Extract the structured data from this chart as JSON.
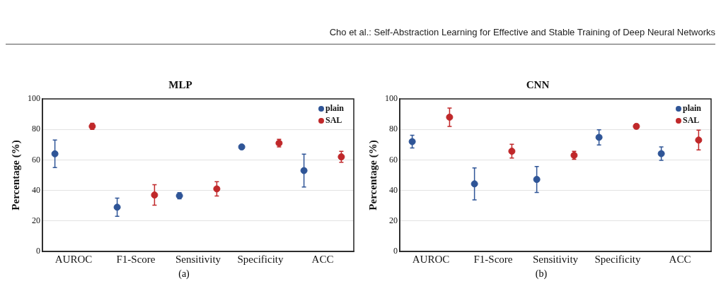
{
  "chart_data": [
    {
      "type": "scatter",
      "title": "MLP",
      "ylabel": "Percentage (%)",
      "categories": [
        "AUROC",
        "F1-Score",
        "Sensitivity",
        "Specificity",
        "ACC"
      ],
      "series": [
        {
          "name": "plain",
          "color": "#2f5597",
          "values": [
            64,
            29,
            36.5,
            68.5,
            53
          ],
          "errors": [
            9,
            6,
            2,
            null,
            10.8
          ]
        },
        {
          "name": "SAL",
          "color": "#c0282a",
          "values": [
            82,
            37,
            41,
            71,
            62
          ],
          "errors": [
            2,
            6.7,
            4.7,
            2.5,
            3.6
          ]
        }
      ],
      "ylim": [
        0,
        100
      ],
      "yticks": [
        0,
        20,
        40,
        60,
        80,
        100
      ],
      "grid": "y",
      "legend": "top right",
      "marker": "circle",
      "annotations": [
        "Cho et al.: Self-Abstraction Learning for Effective and Stable Training of Deep Neural Networks",
        "(a)"
      ]
    },
    {
      "type": "scatter",
      "title": "CNN",
      "ylabel": "Percentage (%)",
      "categories": [
        "AUROC",
        "F1-Score",
        "Sensitivity",
        "Specificity",
        "ACC"
      ],
      "series": [
        {
          "name": "plain",
          "color": "#2f5597",
          "values": [
            72,
            44.3,
            47.2,
            74.8,
            64.1
          ],
          "errors": [
            4.2,
            10.5,
            8.5,
            5,
            4.4
          ]
        },
        {
          "name": "SAL",
          "color": "#c0282a",
          "values": [
            88,
            65.7,
            63,
            82,
            73
          ],
          "errors": [
            6,
            4.5,
            2.6,
            1.5,
            6.5
          ]
        }
      ],
      "ylim": [
        0,
        100
      ],
      "yticks": [
        0,
        20,
        40,
        60,
        80,
        100
      ],
      "grid": "y",
      "legend": "top right",
      "marker": "circle",
      "annotations": [
        "(b)"
      ]
    }
  ]
}
